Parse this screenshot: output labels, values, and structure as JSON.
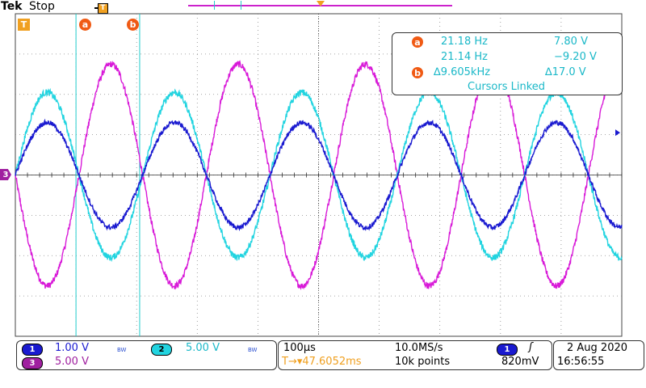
{
  "header": {
    "brand": "Tek",
    "acq_state": "Stop"
  },
  "markers": {
    "trigger_label": "T",
    "cursor_a_label": "a",
    "cursor_b_label": "b",
    "ch3_label": "3"
  },
  "cursor_readout": {
    "row_a": {
      "label": "a",
      "freq": "21.18 Hz",
      "volt": "7.80 V"
    },
    "row_2": {
      "freq": "21.14 Hz",
      "volt": "−9.20 V"
    },
    "row_b": {
      "label": "b",
      "freq": "∆9.605kHz",
      "volt": "∆17.0 V"
    },
    "linked": "Cursors Linked"
  },
  "status_bar": {
    "ch1": {
      "label": "1",
      "scale": "1.00 V",
      "bw": "BW"
    },
    "ch2": {
      "label": "2",
      "scale": "5.00 V",
      "bw": "BW"
    },
    "ch3": {
      "label": "3",
      "scale": "5.00 V"
    },
    "timebase": "100µs",
    "trigger_pos": "T→▾47.6052ms",
    "sample_rate": "10.0MS/s",
    "record": "10k points",
    "trig_source": "1",
    "trig_slope": "ʃ",
    "trig_level": "820mV",
    "date": "2 Aug 2020",
    "time": "16:56:55"
  },
  "colors": {
    "ch1": "#1a1ad0",
    "ch2": "#22d4e0",
    "ch3": "#d81ad8",
    "cursor": "#22cccc",
    "accent": "#f0a020",
    "cursor_text": "#1ab8c8"
  },
  "chart_data": {
    "type": "line",
    "x_unit": "divisions",
    "y_unit": "divisions",
    "xlim": [
      0,
      10
    ],
    "ylim": [
      -4,
      4
    ],
    "grid": true,
    "series": [
      {
        "name": "",
        "channel": 1,
        "amplitude_div": 1.3,
        "period_div": 2.1,
        "phase_deg": 0,
        "offset_div": 0,
        "noise_div": 0.06
      },
      {
        "name": "",
        "channel": 2,
        "amplitude_div": 2.05,
        "period_div": 2.1,
        "phase_deg": 0,
        "offset_div": 0,
        "noise_div": 0.08
      },
      {
        "name": "",
        "channel": 3,
        "amplitude_div": 2.75,
        "period_div": 2.1,
        "phase_deg": 180,
        "offset_div": 0,
        "noise_div": 0.08
      }
    ],
    "cursor_a_x_div": 1.0,
    "cursor_b_x_div": 2.05
  }
}
